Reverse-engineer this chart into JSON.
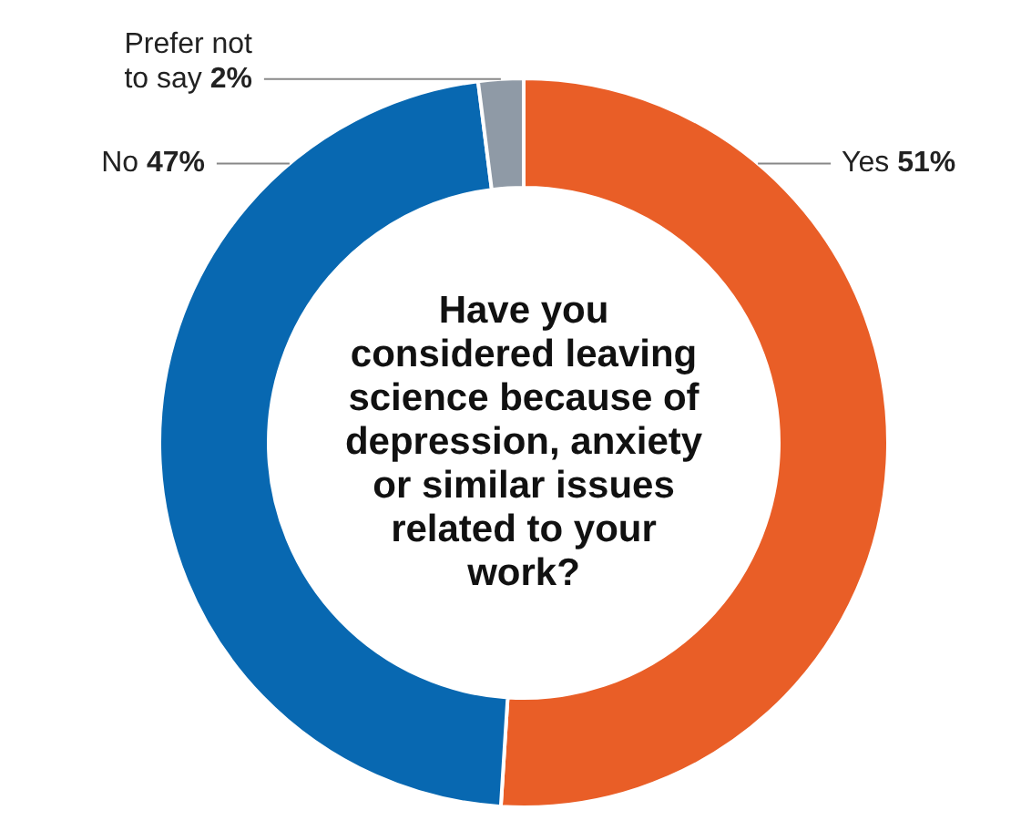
{
  "chart_data": {
    "type": "donut",
    "title": "Have you considered leaving science because of depression, anxiety or similar issues related to your work?",
    "categories": [
      "Yes",
      "No",
      "Prefer not to say"
    ],
    "values": [
      51,
      47,
      2
    ],
    "value_labels": [
      "51%",
      "47%",
      "2%"
    ],
    "colors": [
      "#e95e27",
      "#0868b1",
      "#8f9aa6"
    ],
    "legend": false
  }
}
